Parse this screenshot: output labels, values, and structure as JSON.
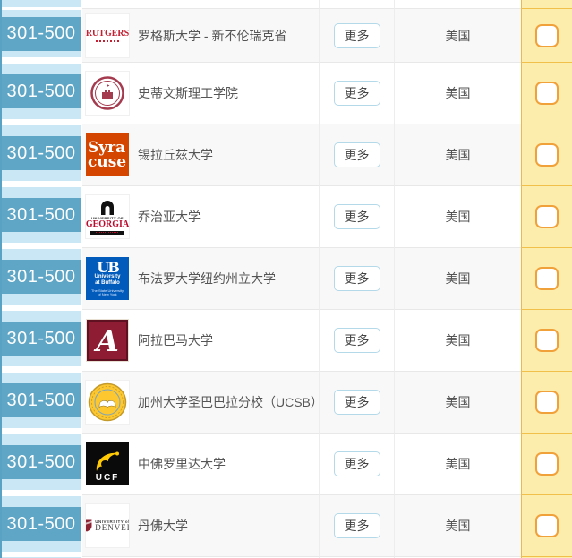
{
  "palette": {
    "rank_badge_blue": "#5fa5c5",
    "rank_cell_light_blue": "#c9e7f4",
    "row_alt_gray": "#f8f8f8",
    "row_border_gray": "#e8e8e8",
    "more_button_border_blue": "#b4d9e9",
    "checkbox_column_yellow": "#fcedad",
    "checkbox_border_orange": "#f1a13a",
    "yellow_column_border_orange": "#edb94a",
    "body_text_gray": "#555555"
  },
  "table": {
    "more_label": "更多",
    "rows": [
      {
        "rank": "301-500",
        "name": "罗格斯大学 - 新不伦瑞克省",
        "country": "美国",
        "logo": {
          "type": "rutgers",
          "lines": [
            "RUTGERS"
          ]
        }
      },
      {
        "rank": "301-500",
        "name": "史蒂文斯理工学院",
        "country": "美国",
        "logo": {
          "type": "stevens",
          "lines": []
        }
      },
      {
        "rank": "301-500",
        "name": "锡拉丘兹大学",
        "country": "美国",
        "logo": {
          "type": "syracuse",
          "lines": [
            "Syra",
            "cuse"
          ]
        }
      },
      {
        "rank": "301-500",
        "name": "乔治亚大学",
        "country": "美国",
        "logo": {
          "type": "georgia",
          "lines": [
            "UNIVERSITY OF",
            "GEORGIA"
          ]
        }
      },
      {
        "rank": "301-500",
        "name": "布法罗大学纽约州立大学",
        "country": "美国",
        "logo": {
          "type": "buffalo",
          "lines": [
            "UB",
            "University",
            "at Buffalo",
            "The State University",
            "of New York"
          ]
        }
      },
      {
        "rank": "301-500",
        "name": "阿拉巴马大学",
        "country": "美国",
        "logo": {
          "type": "alabama",
          "lines": [
            "A"
          ]
        }
      },
      {
        "rank": "301-500",
        "name": "加州大学圣巴巴拉分校（UCSB）",
        "country": "美国",
        "logo": {
          "type": "ucsb",
          "lines": []
        }
      },
      {
        "rank": "301-500",
        "name": "中佛罗里达大学",
        "country": "美国",
        "logo": {
          "type": "ucf",
          "lines": [
            "UCF"
          ]
        }
      },
      {
        "rank": "301-500",
        "name": "丹佛大学",
        "country": "美国",
        "logo": {
          "type": "denver",
          "lines": [
            "UNIVERSITY of",
            "DENVER"
          ]
        }
      }
    ]
  }
}
